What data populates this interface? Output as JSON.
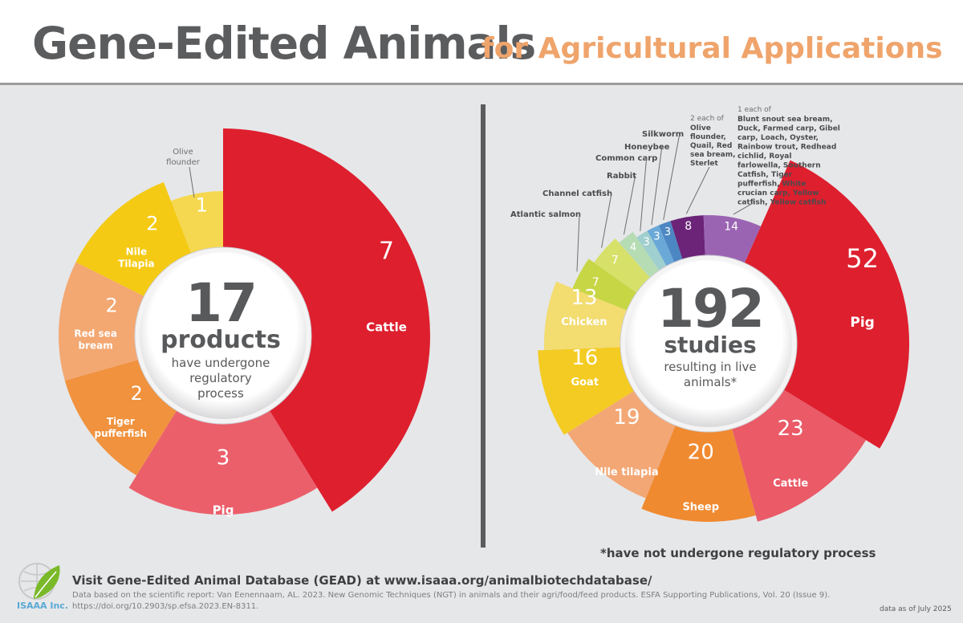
{
  "header": {
    "title": "Gene-Edited Animals",
    "subtitle": "for Agricultural Applications"
  },
  "left_center": {
    "number": "17",
    "word": "products",
    "text": "have undergone regulatory process"
  },
  "right_center": {
    "number": "192",
    "word": "studies",
    "text": "resulting in live animals*"
  },
  "footnote": "*have not undergone regulatory process",
  "footer": {
    "visit": "Visit  Gene-Edited Animal Database (GEAD) at www.isaaa.org/animalbiotechdatabase/",
    "source_line1": "Data based on the scientific report: Van Eenennaam, AL. 2023. New Genomic Techniques (NGT) in animals and their agri/food/feed products. ESFA Supporting Publications, Vol. 20 (Issue 9).",
    "source_line2": "https://doi.org/10.2903/sp.efsa.2023.EN-8311.",
    "date": "data as of July 2025",
    "logo_text": "ISAAA Inc."
  },
  "chart_data": [
    {
      "type": "pie",
      "title": "17 products have undergone regulatory process",
      "total": 17,
      "slices": [
        {
          "label": "Cattle",
          "value": 7,
          "color": "#de1f2e",
          "icon": "cattle-icon"
        },
        {
          "label": "Pig",
          "value": 3,
          "color": "#eb5f6b",
          "icon": "pig-icon"
        },
        {
          "label": "Tiger pufferfish",
          "value": 2,
          "color": "#f0923e",
          "icon": "pufferfish-icon"
        },
        {
          "label": "Red sea bream",
          "value": 2,
          "color": "#f3a771",
          "icon": "fish-icon"
        },
        {
          "label": "Nile Tilapia",
          "value": 2,
          "color": "#f4ca14",
          "icon": "tilapia-icon"
        },
        {
          "label": "Olive flounder",
          "value": 1,
          "color": "#f5d84f",
          "icon": ""
        }
      ]
    },
    {
      "type": "pie",
      "title": "192 studies resulting in live animals*",
      "total": 192,
      "slices": [
        {
          "label": "Pig",
          "value": 52,
          "color": "#de1f2e",
          "icon": "pig-icon"
        },
        {
          "label": "Cattle",
          "value": 23,
          "color": "#ea5a67",
          "icon": "cattle-icon"
        },
        {
          "label": "Sheep",
          "value": 20,
          "color": "#f08a30",
          "icon": "sheep-icon"
        },
        {
          "label": "Nile tilapia",
          "value": 19,
          "color": "#f3a775",
          "icon": "tilapia-icon"
        },
        {
          "label": "Goat",
          "value": 16,
          "color": "#f4cb22",
          "icon": "goat-icon"
        },
        {
          "label": "Chicken",
          "value": 13,
          "color": "#f3dc70",
          "icon": "chicken-icon"
        },
        {
          "label": "Atlantic salmon",
          "value": 7,
          "color": "#c7d644",
          "icon": ""
        },
        {
          "label": "Channel catfish",
          "value": 7,
          "color": "#d7e16a",
          "icon": ""
        },
        {
          "label": "Rabbit",
          "value": 4,
          "color": "#b6dcb4",
          "icon": ""
        },
        {
          "label": "Common carp",
          "value": 3,
          "color": "#9fcfce",
          "icon": ""
        },
        {
          "label": "Honeybee",
          "value": 3,
          "color": "#6aa8d8",
          "icon": ""
        },
        {
          "label": "Silkworm",
          "value": 3,
          "color": "#4d87c3",
          "icon": ""
        },
        {
          "label": "2 each of",
          "value": 8,
          "color": "#6b2478",
          "icon": "",
          "detail": "Olive flounder, Quail, Red sea bream, Sterlet"
        },
        {
          "label": "1 each of",
          "value": 14,
          "color": "#9b64b3",
          "icon": "",
          "detail": "Blunt snout sea bream, Duck, Farmed carp, Gibel carp, Loach, Oyster, Rainbow trout, Redhead cichlid, Royal farlowella, Southern Catfish, Tiger pufferfish, White crucian carp, Yellow catfish, Yellow catfish"
        }
      ]
    }
  ]
}
